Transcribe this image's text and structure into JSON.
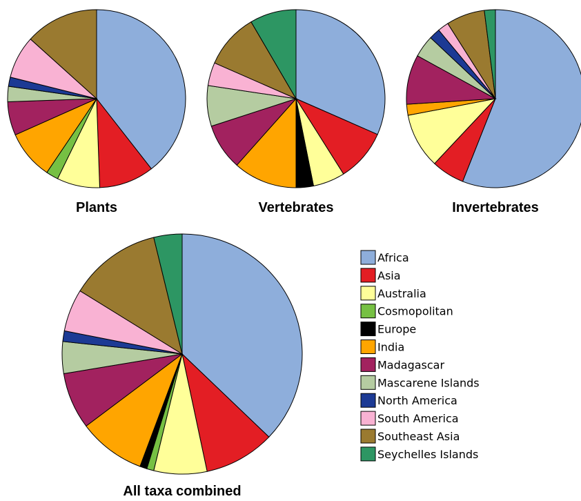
{
  "chart_data": [
    {
      "type": "pie",
      "title": "Plants",
      "categories": [
        "Africa",
        "Asia",
        "Australia",
        "Cosmopolitan",
        "Europe",
        "India",
        "Madagascar",
        "Mascarene Islands",
        "North America",
        "South America",
        "Southeast Asia",
        "Seychelles Islands"
      ],
      "values": [
        35.5,
        9,
        7,
        2,
        0,
        8,
        5.5,
        2.5,
        1.5,
        7,
        12,
        0
      ]
    },
    {
      "type": "pie",
      "title": "Vertebrates",
      "categories": [
        "Africa",
        "Asia",
        "Australia",
        "Cosmopolitan",
        "Europe",
        "India",
        "Madagascar",
        "Mascarene Islands",
        "North America",
        "South America",
        "Southeast Asia",
        "Seychelles Islands"
      ],
      "values": [
        30,
        9,
        5.5,
        0,
        3,
        11,
        8,
        7,
        0,
        4,
        9.5,
        8
      ]
    },
    {
      "type": "pie",
      "title": "Invertebrates",
      "categories": [
        "Africa",
        "Asia",
        "Australia",
        "Cosmopolitan",
        "Europe",
        "India",
        "Madagascar",
        "Mascarene Islands",
        "North America",
        "South America",
        "Southeast Asia",
        "Seychelles Islands"
      ],
      "values": [
        56,
        6,
        10,
        0,
        0,
        2,
        9,
        4,
        2,
        2,
        7,
        2
      ]
    },
    {
      "type": "pie",
      "title": "All taxa combined",
      "categories": [
        "Africa",
        "Asia",
        "Australia",
        "Cosmopolitan",
        "Europe",
        "India",
        "Madagascar",
        "Mascarene Islands",
        "North America",
        "South America",
        "Southeast Asia",
        "Seychelles Islands"
      ],
      "values": [
        39,
        10,
        7.5,
        1,
        1,
        9.5,
        8,
        4.5,
        1.5,
        6,
        13,
        4
      ]
    }
  ],
  "legend": {
    "items": [
      {
        "label": "Africa",
        "color": "#8eaedb"
      },
      {
        "label": "Asia",
        "color": "#e31e24"
      },
      {
        "label": "Australia",
        "color": "#ffff99"
      },
      {
        "label": "Cosmopolitan",
        "color": "#76c043"
      },
      {
        "label": "Europe",
        "color": "#000000"
      },
      {
        "label": "India",
        "color": "#ffa500"
      },
      {
        "label": "Madagascar",
        "color": "#a2225f"
      },
      {
        "label": "Mascarene Islands",
        "color": "#b5cca1"
      },
      {
        "label": "North America",
        "color": "#1c3a94"
      },
      {
        "label": "South America",
        "color": "#f9b2d3"
      },
      {
        "label": "Southeast Asia",
        "color": "#9a7a30"
      },
      {
        "label": "Seychelles Islands",
        "color": "#2d9663"
      }
    ]
  }
}
